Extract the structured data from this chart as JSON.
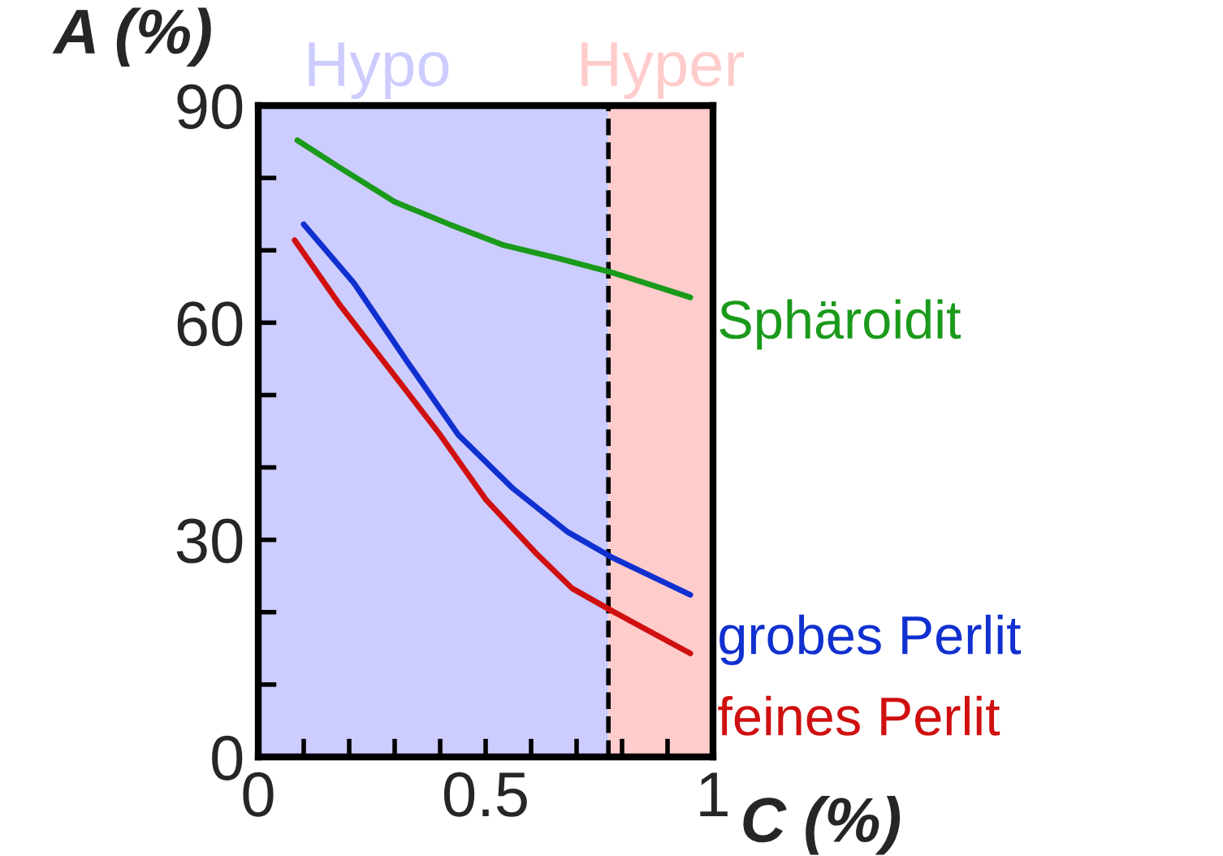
{
  "chart_data": {
    "type": "line",
    "xlabel": "C (%)",
    "ylabel": "A (%)",
    "xlim": [
      0,
      1
    ],
    "ylim": [
      0,
      90
    ],
    "xticks": [
      0,
      {
        "value": 0.1,
        "label": null
      },
      {
        "value": 0.2,
        "label": null
      },
      {
        "value": 0.3,
        "label": null
      },
      {
        "value": 0.4,
        "label": null
      },
      0.5,
      {
        "value": 0.6,
        "label": null
      },
      {
        "value": 0.7,
        "label": null
      },
      {
        "value": 0.8,
        "label": null
      },
      {
        "value": 0.9,
        "label": null
      },
      1
    ],
    "yticks": [
      0,
      {
        "value": 10,
        "label": null
      },
      {
        "value": 20,
        "label": null
      },
      30,
      {
        "value": 40,
        "label": null
      },
      {
        "value": 50,
        "label": null
      },
      60,
      {
        "value": 70,
        "label": null
      },
      {
        "value": 80,
        "label": null
      },
      90
    ],
    "grid": false,
    "legend": false,
    "marker": "none",
    "line_style": "solid",
    "series": [
      {
        "name": "Sphäroidit",
        "color": "#1a9a1a",
        "x": [
          0.086,
          0.18,
          0.3,
          0.42,
          0.54,
          0.66,
          0.78,
          0.95
        ],
        "values": [
          85.2,
          81.4,
          76.7,
          73.6,
          70.7,
          68.9,
          66.9,
          63.5
        ]
      },
      {
        "name": "grobes Perlit",
        "color": "#1030d0",
        "x": [
          0.1,
          0.21,
          0.33,
          0.44,
          0.56,
          0.68,
          0.78,
          0.95
        ],
        "values": [
          73.6,
          65.5,
          54.4,
          44.5,
          37.1,
          31.1,
          27.5,
          22.4
        ]
      },
      {
        "name": "feines Perlit",
        "color": "#d01010",
        "x": [
          0.08,
          0.18,
          0.29,
          0.4,
          0.5,
          0.61,
          0.69,
          0.78,
          0.95
        ],
        "values": [
          71.4,
          62.4,
          53.5,
          44.5,
          35.6,
          28.2,
          23.3,
          20.1,
          14.3
        ]
      }
    ],
    "bands": [
      {
        "axis": "x",
        "from": 0,
        "to": 0.77,
        "label": "Hypo",
        "color": "#ccccff"
      },
      {
        "axis": "x",
        "from": 0.77,
        "to": 1,
        "label": "Hyper",
        "color": "#ffcccc"
      }
    ],
    "ref_lines": [
      {
        "axis": "x",
        "value": 0.77,
        "color": "#000000",
        "line_style": "dashed"
      }
    ]
  }
}
